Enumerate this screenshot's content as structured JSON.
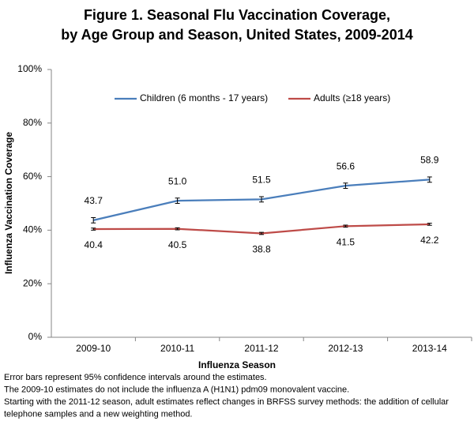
{
  "chart_data": {
    "type": "line",
    "title": [
      "Figure 1. Seasonal Flu Vaccination Coverage,",
      "by Age Group and Season, United States, 2009-2014"
    ],
    "x_label": "Influenza Season",
    "y_label": "Influenza Vaccination Coverage",
    "categories": [
      "2009-10",
      "2010-11",
      "2011-12",
      "2012-13",
      "2013-14"
    ],
    "series": [
      {
        "name": "Children (6 months - 17 years)",
        "color": "#4a7ebb",
        "values": [
          43.7,
          51.0,
          51.5,
          56.6,
          58.9
        ],
        "value_labels": [
          "43.7",
          "51.0",
          "51.5",
          "56.6",
          "58.9"
        ],
        "errors": [
          1.0,
          1.0,
          1.0,
          1.0,
          1.0
        ],
        "label_position": "above"
      },
      {
        "name": "Adults (≥18 years)",
        "color": "#be4b48",
        "values": [
          40.4,
          40.5,
          38.8,
          41.5,
          42.2
        ],
        "value_labels": [
          "40.4",
          "40.5",
          "38.8",
          "41.5",
          "42.2"
        ],
        "errors": [
          0.4,
          0.4,
          0.4,
          0.4,
          0.4
        ],
        "label_position": "below"
      }
    ],
    "ylim": [
      0,
      100
    ],
    "yticks": [
      {
        "value": 0,
        "label": "0%"
      },
      {
        "value": 20,
        "label": "20%"
      },
      {
        "value": 40,
        "label": "40%"
      },
      {
        "value": 60,
        "label": "60%"
      },
      {
        "value": 80,
        "label": "80%"
      },
      {
        "value": 100,
        "label": "100%"
      }
    ],
    "grid": false,
    "legend": "top",
    "notes": [
      "Error bars represent 95% confidence intervals around the estimates.",
      "The 2009-10 estimates do not include  the influenza A (H1N1) pdm09 monovalent vaccine.",
      "Starting with the 2011-12 season, adult estimates reflect changes in BRFSS survey methods: the addition of cellular",
      "telephone samples and a new weighting method."
    ]
  }
}
